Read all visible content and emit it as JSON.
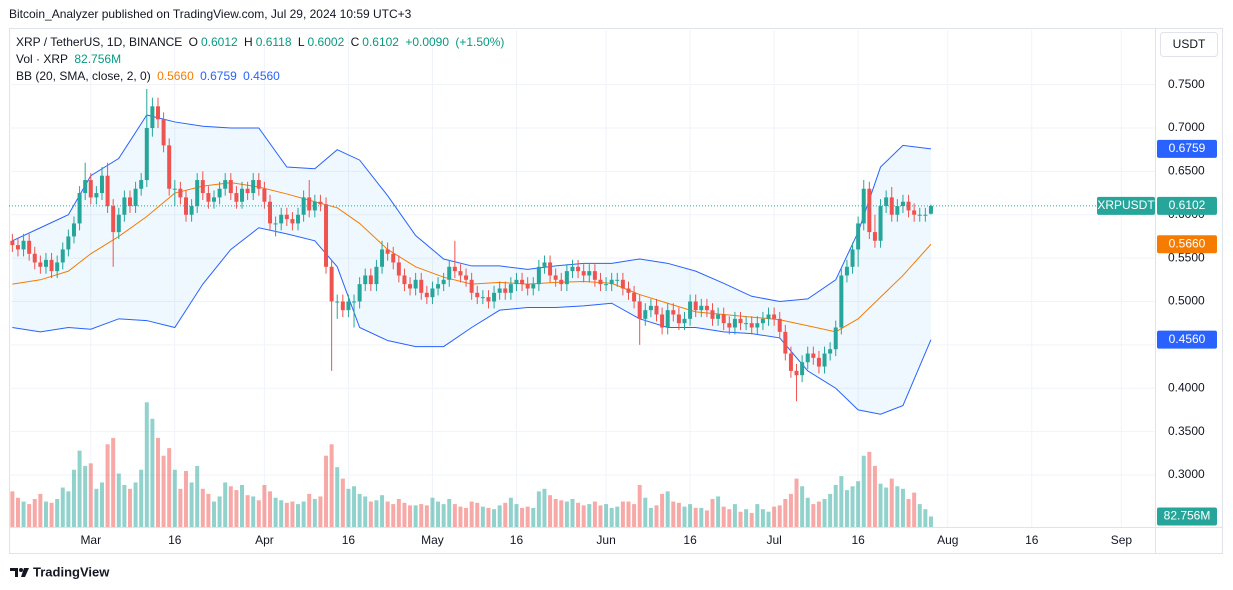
{
  "header": {
    "publisher": "Bitcoin_Analyzer published on TradingView.com, Jul 29, 2024 10:59 UTC+3"
  },
  "chart_data": {
    "type": "candlestick",
    "symbol": "XRP / TetherUS, 1D, BINANCE",
    "ohlc_letters": [
      "O",
      "H",
      "L",
      "C"
    ],
    "change": {
      "value": 0.009,
      "label": "+0.0090"
    },
    "change_pct": {
      "value": 1.5,
      "label": "(+1.50%)"
    },
    "currency": "USDT",
    "ticker": "XRPUSDT",
    "up_color": "#26a69a",
    "down_color": "#ef5350",
    "x": [
      "02-16",
      "02-17",
      "02-18",
      "02-19",
      "02-20",
      "02-21",
      "02-22",
      "02-23",
      "02-24",
      "02-25",
      "02-26",
      "02-27",
      "02-28",
      "02-29",
      "03-01",
      "03-02",
      "03-03",
      "03-04",
      "03-05",
      "03-06",
      "03-07",
      "03-08",
      "03-09",
      "03-10",
      "03-11",
      "03-12",
      "03-13",
      "03-14",
      "03-15",
      "03-16",
      "03-17",
      "03-18",
      "03-19",
      "03-20",
      "03-21",
      "03-22",
      "03-23",
      "03-24",
      "03-25",
      "03-26",
      "03-27",
      "03-28",
      "03-29",
      "03-30",
      "03-31",
      "04-01",
      "04-02",
      "04-03",
      "04-04",
      "04-05",
      "04-06",
      "04-07",
      "04-08",
      "04-09",
      "04-10",
      "04-11",
      "04-12",
      "04-13",
      "04-14",
      "04-15",
      "04-16",
      "04-17",
      "04-18",
      "04-19",
      "04-20",
      "04-21",
      "04-22",
      "04-23",
      "04-24",
      "04-25",
      "04-26",
      "04-27",
      "04-28",
      "04-29",
      "04-30",
      "05-01",
      "05-02",
      "05-03",
      "05-04",
      "05-05",
      "05-06",
      "05-07",
      "05-08",
      "05-09",
      "05-10",
      "05-11",
      "05-12",
      "05-13",
      "05-14",
      "05-15",
      "05-16",
      "05-17",
      "05-18",
      "05-19",
      "05-20",
      "05-21",
      "05-22",
      "05-23",
      "05-24",
      "05-25",
      "05-26",
      "05-27",
      "05-28",
      "05-29",
      "05-30",
      "05-31",
      "06-01",
      "06-02",
      "06-03",
      "06-04",
      "06-05",
      "06-06",
      "06-07",
      "06-08",
      "06-09",
      "06-10",
      "06-11",
      "06-12",
      "06-13",
      "06-14",
      "06-15",
      "06-16",
      "06-17",
      "06-18",
      "06-19",
      "06-20",
      "06-21",
      "06-22",
      "06-23",
      "06-24",
      "06-25",
      "06-26",
      "06-27",
      "06-28",
      "06-29",
      "06-30",
      "07-01",
      "07-02",
      "07-03",
      "07-04",
      "07-05",
      "07-06",
      "07-07",
      "07-08",
      "07-09",
      "07-10",
      "07-11",
      "07-12",
      "07-13",
      "07-14",
      "07-15",
      "07-16",
      "07-17",
      "07-18",
      "07-19",
      "07-20",
      "07-21",
      "07-22",
      "07-23",
      "07-24",
      "07-25",
      "07-26",
      "07-27",
      "07-28",
      "07-29"
    ],
    "open": [
      0.57,
      0.565,
      0.56,
      0.57,
      0.555,
      0.545,
      0.54,
      0.548,
      0.535,
      0.545,
      0.56,
      0.575,
      0.59,
      0.625,
      0.64,
      0.62,
      0.625,
      0.645,
      0.61,
      0.58,
      0.6,
      0.62,
      0.61,
      0.63,
      0.64,
      0.7,
      0.725,
      0.71,
      0.68,
      0.63,
      0.63,
      0.62,
      0.6,
      0.61,
      0.64,
      0.625,
      0.615,
      0.62,
      0.63,
      0.64,
      0.625,
      0.615,
      0.63,
      0.625,
      0.64,
      0.63,
      0.615,
      0.59,
      0.59,
      0.6,
      0.595,
      0.59,
      0.6,
      0.62,
      0.605,
      0.615,
      0.612,
      0.54,
      0.5,
      0.5,
      0.49,
      0.5,
      0.5,
      0.52,
      0.53,
      0.52,
      0.54,
      0.56,
      0.555,
      0.545,
      0.53,
      0.52,
      0.515,
      0.525,
      0.51,
      0.505,
      0.515,
      0.52,
      0.525,
      0.54,
      0.535,
      0.53,
      0.525,
      0.51,
      0.505,
      0.505,
      0.5,
      0.51,
      0.515,
      0.51,
      0.52,
      0.525,
      0.52,
      0.515,
      0.52,
      0.54,
      0.545,
      0.53,
      0.525,
      0.52,
      0.535,
      0.54,
      0.535,
      0.53,
      0.535,
      0.525,
      0.52,
      0.52,
      0.525,
      0.525,
      0.515,
      0.51,
      0.5,
      0.48,
      0.49,
      0.495,
      0.485,
      0.47,
      0.49,
      0.485,
      0.475,
      0.48,
      0.5,
      0.49,
      0.495,
      0.49,
      0.48,
      0.485,
      0.475,
      0.47,
      0.48,
      0.475,
      0.475,
      0.47,
      0.475,
      0.48,
      0.485,
      0.48,
      0.465,
      0.44,
      0.42,
      0.415,
      0.43,
      0.44,
      0.435,
      0.425,
      0.44,
      0.445,
      0.47,
      0.53,
      0.54,
      0.56,
      0.59,
      0.63,
      0.58,
      0.57,
      0.61,
      0.62,
      0.6,
      0.61,
      0.615,
      0.605,
      0.6,
      0.6,
      0.6012
    ],
    "high": [
      0.578,
      0.573,
      0.578,
      0.578,
      0.563,
      0.553,
      0.556,
      0.556,
      0.553,
      0.568,
      0.583,
      0.598,
      0.633,
      0.66,
      0.648,
      0.633,
      0.655,
      0.66,
      0.618,
      0.608,
      0.628,
      0.628,
      0.638,
      0.648,
      0.745,
      0.735,
      0.735,
      0.718,
      0.688,
      0.64,
      0.638,
      0.628,
      0.618,
      0.648,
      0.65,
      0.633,
      0.628,
      0.638,
      0.648,
      0.648,
      0.633,
      0.638,
      0.638,
      0.648,
      0.648,
      0.638,
      0.623,
      0.598,
      0.608,
      0.608,
      0.603,
      0.608,
      0.628,
      0.64,
      0.623,
      0.623,
      0.62,
      0.548,
      0.508,
      0.508,
      0.508,
      0.508,
      0.528,
      0.538,
      0.538,
      0.548,
      0.57,
      0.568,
      0.563,
      0.553,
      0.538,
      0.528,
      0.533,
      0.533,
      0.518,
      0.523,
      0.528,
      0.533,
      0.548,
      0.57,
      0.543,
      0.538,
      0.533,
      0.518,
      0.513,
      0.513,
      0.518,
      0.523,
      0.523,
      0.528,
      0.533,
      0.533,
      0.528,
      0.528,
      0.548,
      0.553,
      0.553,
      0.538,
      0.533,
      0.543,
      0.548,
      0.548,
      0.543,
      0.543,
      0.543,
      0.533,
      0.528,
      0.533,
      0.533,
      0.533,
      0.523,
      0.518,
      0.508,
      0.498,
      0.503,
      0.503,
      0.493,
      0.498,
      0.498,
      0.493,
      0.488,
      0.508,
      0.508,
      0.503,
      0.503,
      0.498,
      0.493,
      0.493,
      0.483,
      0.488,
      0.488,
      0.483,
      0.483,
      0.483,
      0.488,
      0.493,
      0.493,
      0.488,
      0.473,
      0.448,
      0.428,
      0.438,
      0.448,
      0.448,
      0.443,
      0.448,
      0.453,
      0.478,
      0.538,
      0.548,
      0.568,
      0.598,
      0.64,
      0.638,
      0.6,
      0.618,
      0.628,
      0.632,
      0.618,
      0.623,
      0.623,
      0.613,
      0.608,
      0.608,
      0.6118
    ],
    "low": [
      0.557,
      0.552,
      0.552,
      0.547,
      0.537,
      0.532,
      0.532,
      0.527,
      0.527,
      0.537,
      0.552,
      0.567,
      0.582,
      0.617,
      0.612,
      0.612,
      0.617,
      0.602,
      0.54,
      0.572,
      0.592,
      0.602,
      0.602,
      0.622,
      0.632,
      0.69,
      0.7,
      0.672,
      0.622,
      0.61,
      0.612,
      0.592,
      0.592,
      0.602,
      0.617,
      0.607,
      0.607,
      0.612,
      0.622,
      0.617,
      0.607,
      0.607,
      0.617,
      0.617,
      0.622,
      0.607,
      0.582,
      0.575,
      0.582,
      0.587,
      0.582,
      0.582,
      0.592,
      0.597,
      0.597,
      0.604,
      0.532,
      0.42,
      0.48,
      0.482,
      0.482,
      0.47,
      0.492,
      0.512,
      0.512,
      0.512,
      0.532,
      0.547,
      0.537,
      0.522,
      0.512,
      0.507,
      0.507,
      0.502,
      0.497,
      0.497,
      0.507,
      0.512,
      0.517,
      0.527,
      0.522,
      0.517,
      0.502,
      0.497,
      0.497,
      0.492,
      0.492,
      0.502,
      0.502,
      0.502,
      0.512,
      0.512,
      0.507,
      0.507,
      0.512,
      0.532,
      0.522,
      0.517,
      0.512,
      0.512,
      0.527,
      0.527,
      0.522,
      0.522,
      0.517,
      0.512,
      0.512,
      0.512,
      0.517,
      0.507,
      0.502,
      0.492,
      0.45,
      0.472,
      0.482,
      0.477,
      0.462,
      0.462,
      0.477,
      0.467,
      0.467,
      0.472,
      0.482,
      0.482,
      0.482,
      0.472,
      0.472,
      0.467,
      0.462,
      0.462,
      0.467,
      0.467,
      0.462,
      0.462,
      0.467,
      0.472,
      0.472,
      0.457,
      0.432,
      0.412,
      0.385,
      0.407,
      0.422,
      0.427,
      0.417,
      0.417,
      0.432,
      0.437,
      0.462,
      0.522,
      0.532,
      0.54,
      0.582,
      0.572,
      0.562,
      0.562,
      0.602,
      0.592,
      0.592,
      0.602,
      0.597,
      0.592,
      0.592,
      0.592,
      0.6002
    ],
    "close": [
      0.565,
      0.56,
      0.57,
      0.555,
      0.545,
      0.54,
      0.548,
      0.535,
      0.545,
      0.56,
      0.575,
      0.59,
      0.625,
      0.64,
      0.62,
      0.625,
      0.645,
      0.61,
      0.58,
      0.6,
      0.62,
      0.61,
      0.63,
      0.64,
      0.7,
      0.725,
      0.71,
      0.68,
      0.63,
      0.63,
      0.62,
      0.6,
      0.61,
      0.64,
      0.625,
      0.615,
      0.62,
      0.63,
      0.64,
      0.625,
      0.615,
      0.63,
      0.625,
      0.64,
      0.63,
      0.615,
      0.59,
      0.59,
      0.6,
      0.595,
      0.59,
      0.6,
      0.62,
      0.605,
      0.615,
      0.612,
      0.54,
      0.5,
      0.5,
      0.49,
      0.5,
      0.5,
      0.52,
      0.53,
      0.52,
      0.54,
      0.56,
      0.555,
      0.545,
      0.53,
      0.52,
      0.515,
      0.525,
      0.51,
      0.505,
      0.515,
      0.52,
      0.525,
      0.54,
      0.535,
      0.53,
      0.525,
      0.51,
      0.505,
      0.505,
      0.5,
      0.51,
      0.515,
      0.51,
      0.52,
      0.525,
      0.52,
      0.515,
      0.52,
      0.54,
      0.545,
      0.53,
      0.525,
      0.52,
      0.535,
      0.54,
      0.535,
      0.53,
      0.535,
      0.525,
      0.52,
      0.52,
      0.525,
      0.525,
      0.515,
      0.51,
      0.5,
      0.48,
      0.49,
      0.495,
      0.485,
      0.47,
      0.49,
      0.485,
      0.475,
      0.48,
      0.5,
      0.49,
      0.495,
      0.49,
      0.48,
      0.485,
      0.475,
      0.47,
      0.48,
      0.475,
      0.475,
      0.47,
      0.475,
      0.48,
      0.485,
      0.48,
      0.465,
      0.44,
      0.42,
      0.415,
      0.43,
      0.44,
      0.435,
      0.425,
      0.44,
      0.445,
      0.47,
      0.53,
      0.54,
      0.56,
      0.59,
      0.63,
      0.58,
      0.57,
      0.61,
      0.62,
      0.6,
      0.61,
      0.615,
      0.605,
      0.6,
      0.6,
      0.6,
      0.6102
    ],
    "ylim": [
      0.24,
      0.813
    ],
    "yticks": [
      {
        "value": 0.75,
        "label": "0.7500"
      },
      {
        "value": 0.7,
        "label": "0.7000"
      },
      {
        "value": 0.65,
        "label": "0.6500"
      },
      {
        "value": 0.6,
        "label": "0.6000"
      },
      {
        "value": 0.55,
        "label": "0.5500"
      },
      {
        "value": 0.5,
        "label": "0.5000"
      },
      {
        "value": 0.45,
        "label": "0.4500"
      },
      {
        "value": 0.4,
        "label": "0.4000"
      },
      {
        "value": 0.35,
        "label": "0.3500"
      },
      {
        "value": 0.3,
        "label": "0.3000"
      }
    ],
    "xlim": [
      "02-16",
      "09-07"
    ],
    "xticks": [
      {
        "value": "03-01",
        "label": "Mar"
      },
      {
        "value": "03-16",
        "label": "16"
      },
      {
        "value": "04-01",
        "label": "Apr"
      },
      {
        "value": "04-16",
        "label": "16"
      },
      {
        "value": "05-01",
        "label": "May"
      },
      {
        "value": "05-16",
        "label": "16"
      },
      {
        "value": "06-01",
        "label": "Jun"
      },
      {
        "value": "06-16",
        "label": "16"
      },
      {
        "value": "07-01",
        "label": "Jul"
      },
      {
        "value": "07-16",
        "label": "16"
      },
      {
        "value": "08-01",
        "label": "Aug"
      },
      {
        "value": "08-16",
        "label": "16"
      },
      {
        "value": "09-01",
        "label": "Sep"
      }
    ],
    "grid": true,
    "volume": {
      "title": "Vol · XRP",
      "last_label": "82.756M",
      "vlim": [
        0,
        1100
      ],
      "values": [
        280,
        230,
        200,
        180,
        220,
        260,
        200,
        190,
        220,
        310,
        280,
        450,
        600,
        480,
        500,
        300,
        350,
        650,
        700,
        420,
        330,
        300,
        350,
        450,
        980,
        850,
        700,
        560,
        620,
        450,
        300,
        440,
        350,
        480,
        300,
        260,
        200,
        240,
        350,
        320,
        290,
        330,
        250,
        240,
        210,
        330,
        280,
        230,
        210,
        190,
        200,
        180,
        200,
        260,
        220,
        240,
        560,
        650,
        470,
        380,
        300,
        320,
        260,
        240,
        200,
        210,
        250,
        200,
        180,
        220,
        190,
        170,
        170,
        180,
        170,
        230,
        200,
        180,
        220,
        180,
        160,
        150,
        200,
        190,
        160,
        150,
        140,
        170,
        190,
        230,
        180,
        150,
        160,
        150,
        280,
        300,
        250,
        220,
        210,
        200,
        220,
        190,
        170,
        180,
        200,
        170,
        180,
        150,
        160,
        200,
        200,
        180,
        330,
        230,
        150,
        170,
        260,
        280,
        200,
        190,
        160,
        180,
        150,
        150,
        130,
        220,
        240,
        160,
        140,
        180,
        120,
        140,
        110,
        180,
        140,
        120,
        160,
        170,
        220,
        260,
        380,
        320,
        230,
        180,
        200,
        220,
        260,
        330,
        400,
        290,
        320,
        360,
        560,
        590,
        480,
        340,
        310,
        380,
        320,
        300,
        220,
        270,
        180,
        140,
        82.756
      ]
    },
    "bb": {
      "title": "BB (20, SMA, close, 2, 0)",
      "fill": "#2196f3",
      "x": [
        "02-16",
        "02-21",
        "02-26",
        "03-01",
        "03-06",
        "03-11",
        "03-16",
        "03-21",
        "03-26",
        "03-31",
        "04-05",
        "04-10",
        "04-14",
        "04-18",
        "04-23",
        "04-28",
        "05-03",
        "05-08",
        "05-13",
        "05-18",
        "05-23",
        "05-28",
        "06-02",
        "06-07",
        "06-12",
        "06-17",
        "06-22",
        "06-27",
        "07-02",
        "07-07",
        "07-12",
        "07-16",
        "07-20",
        "07-24",
        "07-29"
      ],
      "series": [
        {
          "color": "#f57c00",
          "last_label": "0.5660",
          "values": [
            0.52,
            0.525,
            0.535,
            0.555,
            0.575,
            0.598,
            0.625,
            0.633,
            0.637,
            0.632,
            0.624,
            0.615,
            0.608,
            0.59,
            0.56,
            0.54,
            0.528,
            0.52,
            0.522,
            0.52,
            0.522,
            0.523,
            0.521,
            0.508,
            0.498,
            0.488,
            0.485,
            0.482,
            0.479,
            0.472,
            0.465,
            0.48,
            0.505,
            0.53,
            0.566
          ]
        },
        {
          "color": "#2962ff",
          "last_label": "0.6759",
          "values": [
            0.57,
            0.585,
            0.6,
            0.645,
            0.665,
            0.715,
            0.707,
            0.702,
            0.7,
            0.7,
            0.655,
            0.653,
            0.675,
            0.663,
            0.622,
            0.576,
            0.549,
            0.541,
            0.541,
            0.537,
            0.541,
            0.544,
            0.544,
            0.549,
            0.544,
            0.535,
            0.521,
            0.506,
            0.5,
            0.503,
            0.525,
            0.58,
            0.655,
            0.68,
            0.6759
          ]
        },
        {
          "color": "#2962ff",
          "last_label": "0.4560",
          "values": [
            0.47,
            0.465,
            0.47,
            0.468,
            0.48,
            0.478,
            0.47,
            0.52,
            0.56,
            0.585,
            0.578,
            0.57,
            0.54,
            0.47,
            0.455,
            0.448,
            0.448,
            0.47,
            0.49,
            0.493,
            0.493,
            0.495,
            0.498,
            0.48,
            0.47,
            0.47,
            0.465,
            0.463,
            0.458,
            0.42,
            0.4,
            0.375,
            0.37,
            0.38,
            0.456
          ]
        }
      ]
    }
  },
  "footer": {
    "brand": "TradingView"
  }
}
